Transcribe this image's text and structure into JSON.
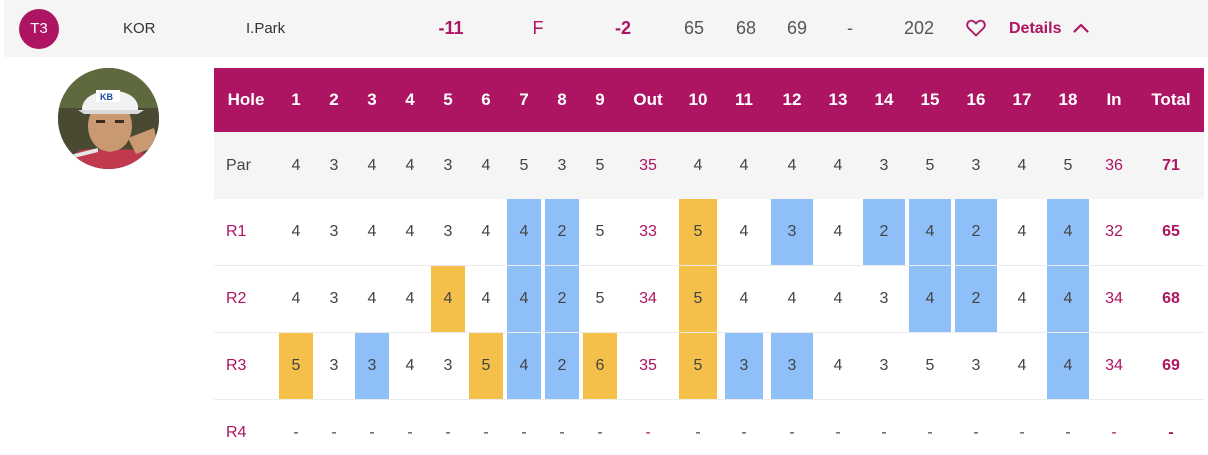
{
  "summary": {
    "position": "T3",
    "country": "KOR",
    "player": "I.Park",
    "to_par": "-11",
    "thru": "F",
    "today": "-2",
    "rounds": [
      "65",
      "68",
      "69",
      "-"
    ],
    "total": "202",
    "details_label": "Details",
    "favorite_icon": "heart-outline-icon",
    "expand_icon": "chevron-up-icon"
  },
  "colors": {
    "accent": "#ad1461",
    "birdie": "#8fbff8",
    "bogey": "#f5c04a",
    "row_bg": "#f5f5f5"
  },
  "scorecard": {
    "header": [
      "Hole",
      "1",
      "2",
      "3",
      "4",
      "5",
      "6",
      "7",
      "8",
      "9",
      "Out",
      "10",
      "11",
      "12",
      "13",
      "14",
      "15",
      "16",
      "17",
      "18",
      "In",
      "Total"
    ],
    "par": {
      "label": "Par",
      "values": [
        "4",
        "3",
        "4",
        "4",
        "3",
        "4",
        "5",
        "3",
        "5",
        "35",
        "4",
        "4",
        "4",
        "4",
        "3",
        "5",
        "3",
        "4",
        "5",
        "36",
        "71"
      ]
    },
    "rounds": [
      {
        "label": "R1",
        "values": [
          "4",
          "3",
          "4",
          "4",
          "3",
          "4",
          "4",
          "2",
          "5",
          "33",
          "5",
          "4",
          "3",
          "4",
          "2",
          "4",
          "2",
          "4",
          "4",
          "32",
          "65"
        ],
        "marks": [
          "",
          "",
          "",
          "",
          "",
          "",
          "b",
          "b",
          "",
          "",
          "g",
          "",
          "b",
          "",
          "b",
          "b",
          "b",
          "",
          "b",
          "",
          ""
        ]
      },
      {
        "label": "R2",
        "values": [
          "4",
          "3",
          "4",
          "4",
          "4",
          "4",
          "4",
          "2",
          "5",
          "34",
          "5",
          "4",
          "4",
          "4",
          "3",
          "4",
          "2",
          "4",
          "4",
          "34",
          "68"
        ],
        "marks": [
          "",
          "",
          "",
          "",
          "g",
          "",
          "b",
          "b",
          "",
          "",
          "g",
          "",
          "",
          "",
          "",
          "b",
          "b",
          "",
          "b",
          "",
          ""
        ]
      },
      {
        "label": "R3",
        "values": [
          "5",
          "3",
          "3",
          "4",
          "3",
          "5",
          "4",
          "2",
          "6",
          "35",
          "5",
          "3",
          "3",
          "4",
          "3",
          "5",
          "3",
          "4",
          "4",
          "34",
          "69"
        ],
        "marks": [
          "g",
          "",
          "b",
          "",
          "",
          "g",
          "b",
          "b",
          "g",
          "",
          "g",
          "b",
          "b",
          "",
          "",
          "",
          "",
          "",
          "b",
          "",
          ""
        ]
      },
      {
        "label": "R4",
        "values": [
          "-",
          "-",
          "-",
          "-",
          "-",
          "-",
          "-",
          "-",
          "-",
          "-",
          "-",
          "-",
          "-",
          "-",
          "-",
          "-",
          "-",
          "-",
          "-",
          "-",
          "-"
        ],
        "marks": [
          "",
          "",
          "",
          "",
          "",
          "",
          "",
          "",
          "",
          "",
          "",
          "",
          "",
          "",
          "",
          "",
          "",
          "",
          "",
          "",
          ""
        ]
      }
    ]
  }
}
